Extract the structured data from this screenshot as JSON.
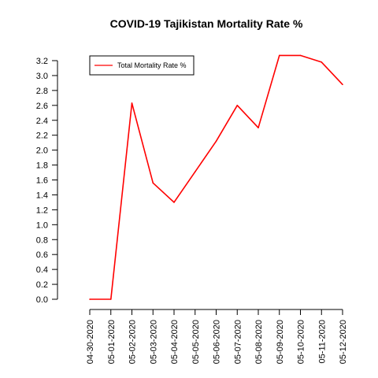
{
  "chart_data": {
    "type": "line",
    "title": "COVID-19 Tajikistan Mortality Rate %",
    "xlabel": "",
    "ylabel": "",
    "categories": [
      "04-30-2020",
      "05-01-2020",
      "05-02-2020",
      "05-03-2020",
      "05-04-2020",
      "05-05-2020",
      "05-06-2020",
      "05-07-2020",
      "05-08-2020",
      "05-09-2020",
      "05-10-2020",
      "05-11-2020",
      "05-12-2020"
    ],
    "series": [
      {
        "name": "Total Mortality Rate %",
        "color": "#ff0000",
        "values": [
          0.0,
          0.0,
          2.63,
          1.56,
          1.3,
          1.71,
          2.12,
          2.6,
          2.3,
          3.27,
          3.27,
          3.18,
          2.88
        ]
      }
    ],
    "yticks": [
      "0.0",
      "0.2",
      "0.4",
      "0.6",
      "0.8",
      "1.0",
      "1.2",
      "1.4",
      "1.6",
      "1.8",
      "2.0",
      "2.2",
      "2.4",
      "2.6",
      "2.8",
      "3.0",
      "3.2"
    ],
    "ylim": [
      0,
      3.2
    ],
    "grid": false,
    "legend": "top-left"
  }
}
